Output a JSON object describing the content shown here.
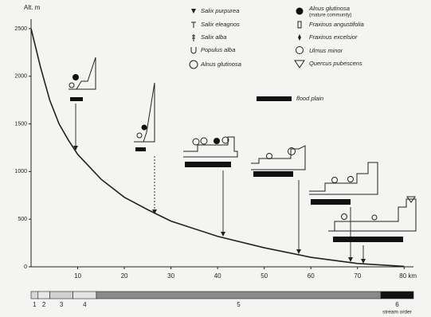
{
  "chart_data": {
    "type": "line",
    "y_label": "Alt. m",
    "x": [
      0,
      2,
      4,
      6,
      8,
      10,
      15,
      20,
      25,
      30,
      40,
      50,
      60,
      70,
      80
    ],
    "values": [
      2500,
      2100,
      1750,
      1500,
      1330,
      1180,
      920,
      730,
      600,
      480,
      320,
      200,
      100,
      35,
      5
    ],
    "color": "#222222",
    "xlim": [
      0,
      82
    ],
    "ylim": [
      0,
      2600
    ],
    "xticks": [
      10,
      20,
      30,
      40,
      50,
      60,
      70,
      {
        "value": 80,
        "label": "80 km"
      }
    ],
    "yticks": [
      0,
      500,
      1000,
      1500,
      2000,
      2500
    ],
    "legend": [
      "Salix purpurea",
      "Salix eleagnos",
      "Salix alba",
      "Populus alba",
      "Alnus glutinosa",
      "Alnus glutinosa",
      "(mature community)",
      "Fraxinus angustifolia",
      "Fraxinus excelsior",
      "Ulmus minor",
      "Quercus pubescens",
      "flood plain"
    ],
    "stream_order": {
      "caption": "stream order",
      "zones": [
        {
          "label": "1",
          "from": 0,
          "to": 1.5,
          "color": "#d8d8d8"
        },
        {
          "label": "2",
          "from": 1.5,
          "to": 4,
          "color": "#e8e8e8"
        },
        {
          "label": "3",
          "from": 4,
          "to": 9,
          "color": "#d0d0d0"
        },
        {
          "label": "4",
          "from": 9,
          "to": 14,
          "color": "#e4e4e4"
        },
        {
          "label": "5",
          "from": 14,
          "to": 75,
          "color": "#8a8a8a"
        },
        {
          "label": "6",
          "from": 75,
          "to": 82,
          "color": "#111111"
        }
      ]
    }
  }
}
